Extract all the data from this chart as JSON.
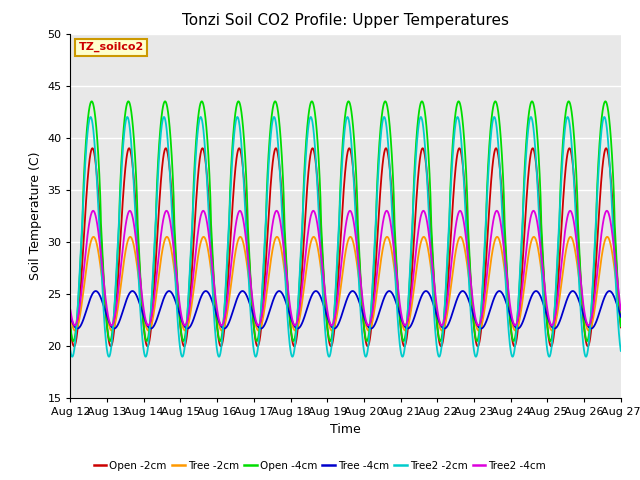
{
  "title": "Tonzi Soil CO2 Profile: Upper Temperatures",
  "xlabel": "Time",
  "ylabel": "Soil Temperature (C)",
  "ylim": [
    15,
    50
  ],
  "n_days": 15,
  "x_tick_labels": [
    "Aug 12",
    "Aug 13",
    "Aug 14",
    "Aug 15",
    "Aug 16",
    "Aug 17",
    "Aug 18",
    "Aug 19",
    "Aug 20",
    "Aug 21",
    "Aug 22",
    "Aug 23",
    "Aug 24",
    "Aug 25",
    "Aug 26",
    "Aug 27"
  ],
  "legend_entries": [
    "Open -2cm",
    "Tree -2cm",
    "Open -4cm",
    "Tree -4cm",
    "Tree2 -2cm",
    "Tree2 -4cm"
  ],
  "line_colors": [
    "#cc0000",
    "#ff9900",
    "#00dd00",
    "#0000cc",
    "#00cccc",
    "#dd00dd"
  ],
  "annotation_text": "TZ_soilco2",
  "annotation_color": "#cc0000",
  "annotation_bg": "#ffffcc",
  "annotation_border": "#cc9900",
  "title_fontsize": 11,
  "label_fontsize": 9,
  "tick_fontsize": 8,
  "fig_bg": "#ffffff",
  "plot_bg": "#e8e8e8",
  "series_params": [
    {
      "base": 29.5,
      "amp": 9.5,
      "phase": 0.35,
      "peak_narrow": false
    },
    {
      "base": 26.0,
      "amp": 4.5,
      "phase": 0.38,
      "peak_narrow": false
    },
    {
      "base": 32.0,
      "amp": 11.5,
      "phase": 0.33,
      "peak_narrow": true
    },
    {
      "base": 23.5,
      "amp": 1.8,
      "phase": 0.44,
      "peak_narrow": false
    },
    {
      "base": 30.5,
      "amp": 11.5,
      "phase": 0.3,
      "peak_narrow": false
    },
    {
      "base": 27.5,
      "amp": 5.5,
      "phase": 0.37,
      "peak_narrow": false
    }
  ]
}
